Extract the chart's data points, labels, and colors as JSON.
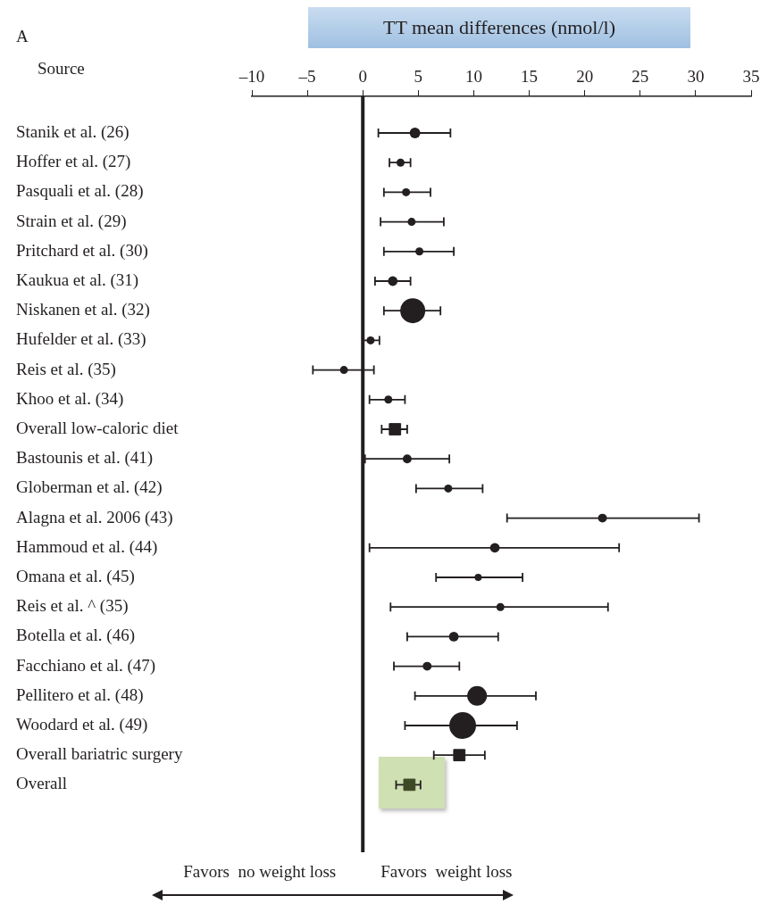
{
  "chart_data": {
    "type": "bubble",
    "orientation": "horizontal",
    "title": "TT mean differences (nmol/l)",
    "ylabel": "Source",
    "categories": [
      "Stanik et al. (26)",
      "Hoffer et al. (27)",
      "Pasquali et al. (28)",
      "Strain et al. (29)",
      "Pritchard et al. (30)",
      "Kaukua et al. (31)",
      "Niskanen et al. (32)",
      "Hufelder et al. (33)",
      "Reis et al. (35)",
      "Khoo et al. (34)",
      "Overall low-caloric diet",
      "Bastounis et al. (41)",
      "Globerman et al. (42)",
      "Alagna et al. 2006 (43)",
      "Hammoud et al. (44)",
      "Omana et al. (45)",
      "Reis et al. ^ (35)",
      "Botella et al. (46)",
      "Facchiano et al. (47)",
      "Pellitero et al. (48)",
      "Woodard et al. (49)",
      "Overall bariatric surgery",
      "Overall"
    ],
    "series": [
      {
        "marker": "circle",
        "color": "#231f20",
        "values": [
          4.7,
          3.4,
          3.9,
          4.4,
          5.1,
          2.7,
          4.5,
          0.7,
          -1.7,
          2.3,
          null,
          4.0,
          7.7,
          21.6,
          11.9,
          10.4,
          12.4,
          8.2,
          5.8,
          10.3,
          9.0,
          null,
          null
        ],
        "errors": [
          [
            1.4,
            7.9
          ],
          [
            2.4,
            4.3
          ],
          [
            1.9,
            6.1
          ],
          [
            1.6,
            7.3
          ],
          [
            1.9,
            8.2
          ],
          [
            1.1,
            4.3
          ],
          [
            1.9,
            7.0
          ],
          [
            0.0,
            1.5
          ],
          [
            -4.5,
            1.0
          ],
          [
            0.6,
            3.8
          ],
          null,
          [
            0.2,
            7.8
          ],
          [
            4.8,
            10.8
          ],
          [
            13.0,
            30.3
          ],
          [
            0.6,
            23.1
          ],
          [
            6.6,
            14.4
          ],
          [
            2.5,
            22.1
          ],
          [
            4.0,
            12.2
          ],
          [
            2.8,
            8.7
          ],
          [
            4.7,
            15.6
          ],
          [
            3.8,
            13.9
          ],
          null,
          null
        ],
        "sizes": [
          0.16,
          0.09,
          0.09,
          0.09,
          0.09,
          0.13,
          0.87,
          0.09,
          0.09,
          0.09,
          null,
          0.11,
          0.09,
          0.11,
          0.13,
          0.07,
          0.09,
          0.13,
          0.11,
          0.54,
          1,
          null,
          null
        ]
      },
      {
        "type": "scatter",
        "marker": "square",
        "colors": [
          null,
          null,
          null,
          null,
          null,
          null,
          null,
          null,
          null,
          null,
          "#231f20",
          null,
          null,
          null,
          null,
          null,
          null,
          null,
          null,
          null,
          null,
          "#231f20",
          "#3d4a26"
        ],
        "values": [
          null,
          null,
          null,
          null,
          null,
          null,
          null,
          null,
          null,
          null,
          2.9,
          null,
          null,
          null,
          null,
          null,
          null,
          null,
          null,
          null,
          null,
          8.7,
          4.2
        ],
        "errors": [
          null,
          null,
          null,
          null,
          null,
          null,
          null,
          null,
          null,
          null,
          [
            1.7,
            4.0
          ],
          null,
          null,
          null,
          null,
          null,
          null,
          null,
          null,
          null,
          null,
          [
            6.4,
            11.0
          ],
          [
            3.0,
            5.2
          ]
        ]
      }
    ],
    "xlim": [
      -10,
      35
    ],
    "xticks": [
      {
        "value": -10,
        "label": "–10"
      },
      {
        "value": -5,
        "label": "–5"
      },
      0,
      5,
      10,
      15,
      20,
      25,
      30,
      35
    ],
    "ref_lines": [
      {
        "axis": "x",
        "value": 0,
        "color": "#231f20"
      }
    ],
    "annotations": [
      "A",
      "Favors  no weight loss",
      "Favors  weight loss"
    ]
  }
}
